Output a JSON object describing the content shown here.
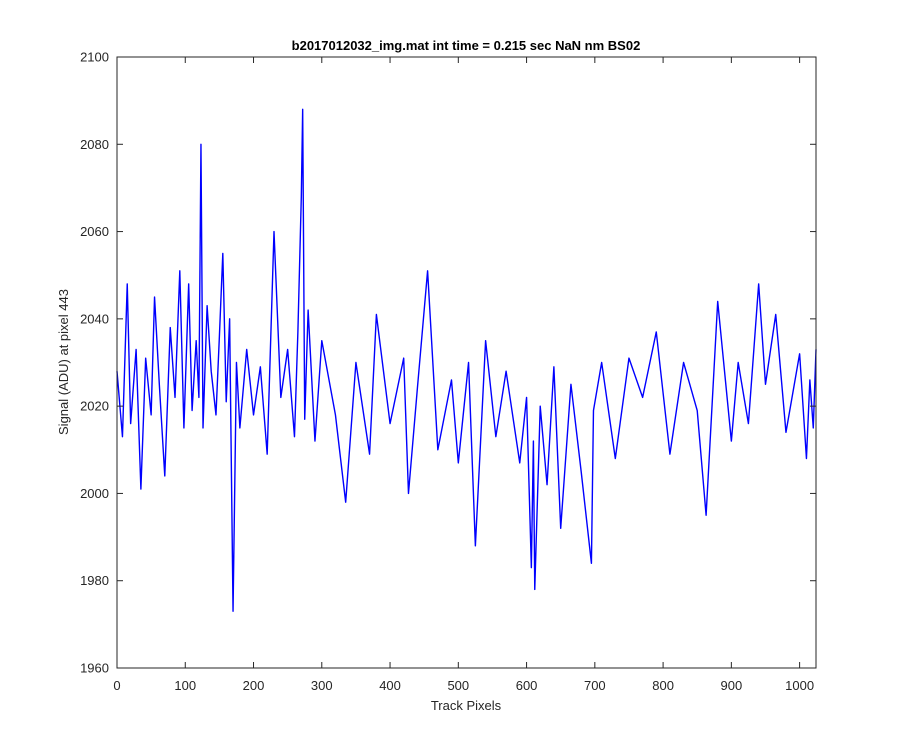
{
  "chart_data": {
    "type": "line",
    "title": "b2017012032_img.mat int time = 0.215 sec  NaN nm BS02",
    "xlabel": "Track Pixels",
    "ylabel": "Signal (ADU) at pixel 443",
    "xlim": [
      0,
      1024
    ],
    "ylim": [
      1960,
      2100
    ],
    "xticks": [
      0,
      100,
      200,
      300,
      400,
      500,
      600,
      700,
      800,
      900,
      1000
    ],
    "yticks": [
      1960,
      1980,
      2000,
      2020,
      2040,
      2060,
      2080,
      2100
    ],
    "grid": false,
    "series": [
      {
        "color": "#0000ff",
        "x": [
          0,
          8,
          15,
          20,
          28,
          35,
          42,
          50,
          55,
          62,
          70,
          78,
          85,
          92,
          98,
          105,
          110,
          116,
          120,
          123,
          126,
          132,
          138,
          145,
          150,
          155,
          160,
          165,
          170,
          175,
          180,
          190,
          200,
          210,
          220,
          230,
          240,
          250,
          260,
          265,
          270,
          272,
          275,
          280,
          290,
          300,
          320,
          335,
          350,
          370,
          380,
          400,
          420,
          427,
          440,
          455,
          470,
          490,
          500,
          515,
          525,
          540,
          555,
          570,
          590,
          600,
          607,
          610,
          612,
          620,
          630,
          640,
          650,
          665,
          680,
          695,
          698,
          710,
          730,
          750,
          770,
          790,
          810,
          830,
          850,
          863,
          880,
          900,
          910,
          925,
          940,
          950,
          965,
          980,
          1000,
          1010,
          1015,
          1020,
          1024
        ],
        "y": [
          2028,
          2013,
          2048,
          2016,
          2033,
          2001,
          2031,
          2018,
          2045,
          2025,
          2004,
          2038,
          2022,
          2051,
          2015,
          2048,
          2019,
          2035,
          2022,
          2080,
          2015,
          2043,
          2028,
          2018,
          2036,
          2055,
          2021,
          2040,
          1973,
          2030,
          2015,
          2033,
          2018,
          2029,
          2009,
          2060,
          2022,
          2033,
          2013,
          2037,
          2068,
          2088,
          2017,
          2042,
          2012,
          2035,
          2018,
          1998,
          2030,
          2009,
          2041,
          2016,
          2031,
          2000,
          2024,
          2051,
          2010,
          2026,
          2007,
          2030,
          1988,
          2035,
          2013,
          2028,
          2007,
          2022,
          1983,
          2012,
          1978,
          2020,
          2002,
          2029,
          1992,
          2025,
          2005,
          1984,
          2019,
          2030,
          2008,
          2031,
          2022,
          2037,
          2009,
          2030,
          2019,
          1995,
          2044,
          2012,
          2030,
          2016,
          2048,
          2025,
          2041,
          2014,
          2032,
          2008,
          2026,
          2015,
          2033
        ]
      }
    ]
  }
}
